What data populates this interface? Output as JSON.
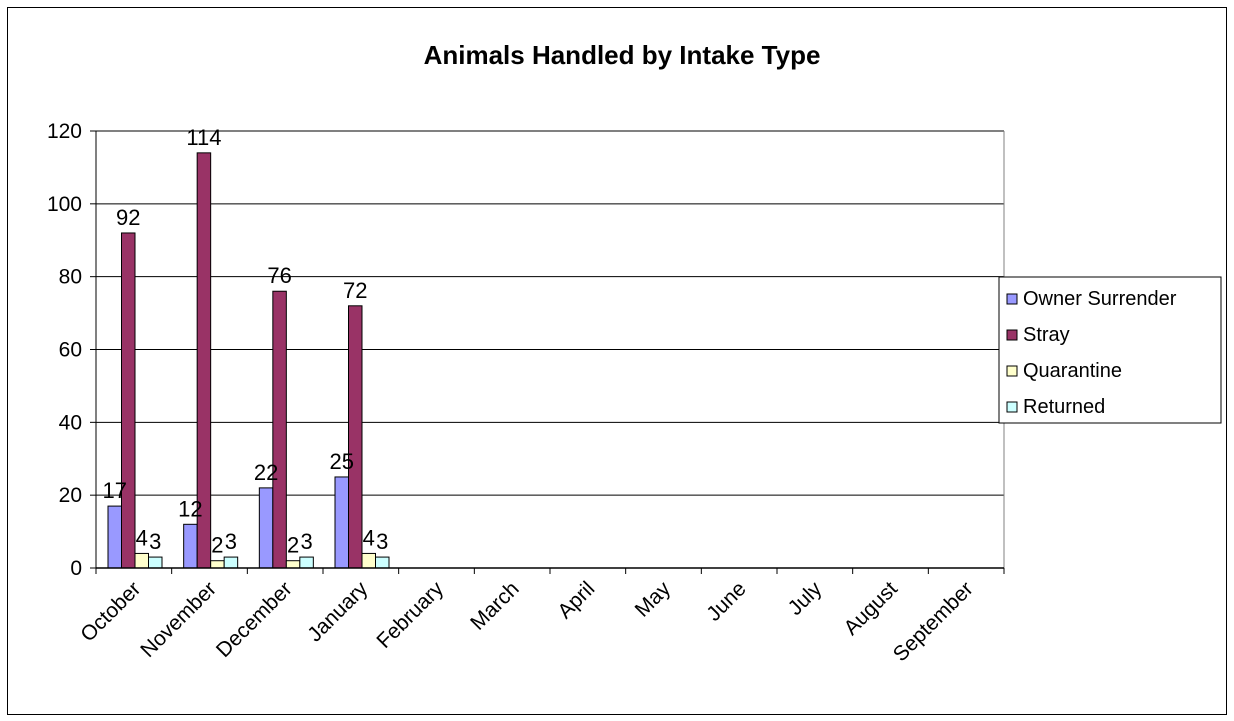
{
  "chart_data": {
    "type": "bar",
    "title": "Animals Handled by Intake Type",
    "xlabel": "",
    "ylabel": "",
    "categories": [
      "October",
      "November",
      "December",
      "January",
      "February",
      "March",
      "April",
      "May",
      "June",
      "July",
      "August",
      "September"
    ],
    "ylim": [
      0,
      120
    ],
    "yticks": [
      0,
      20,
      40,
      60,
      80,
      100,
      120
    ],
    "grid": true,
    "legend_position": "right",
    "series": [
      {
        "name": "Owner Surrender",
        "color": "#9999ff",
        "values": [
          17,
          12,
          22,
          25,
          null,
          null,
          null,
          null,
          null,
          null,
          null,
          null
        ],
        "labels": [
          "17",
          "12",
          "22",
          "25",
          null,
          null,
          null,
          null,
          null,
          null,
          null,
          null
        ]
      },
      {
        "name": "Stray",
        "color": "#993366",
        "values": [
          92,
          114,
          76,
          72,
          null,
          null,
          null,
          null,
          null,
          null,
          null,
          null
        ],
        "labels": [
          "92",
          "114",
          "76",
          "72",
          null,
          null,
          null,
          null,
          null,
          null,
          null,
          null
        ]
      },
      {
        "name": "Quarantine",
        "color": "#ffffcc",
        "values": [
          4,
          2,
          2,
          4,
          null,
          null,
          null,
          null,
          null,
          null,
          null,
          null
        ],
        "labels": [
          "4",
          "2",
          "2",
          "4",
          null,
          null,
          null,
          null,
          null,
          null,
          null,
          null
        ]
      },
      {
        "name": "Returned",
        "color": "#ccffff",
        "values": [
          3,
          3,
          3,
          3,
          null,
          null,
          null,
          null,
          null,
          null,
          null,
          null
        ],
        "labels": [
          "3",
          "3",
          "3",
          "3",
          null,
          null,
          null,
          null,
          null,
          null,
          null,
          null
        ]
      }
    ]
  }
}
